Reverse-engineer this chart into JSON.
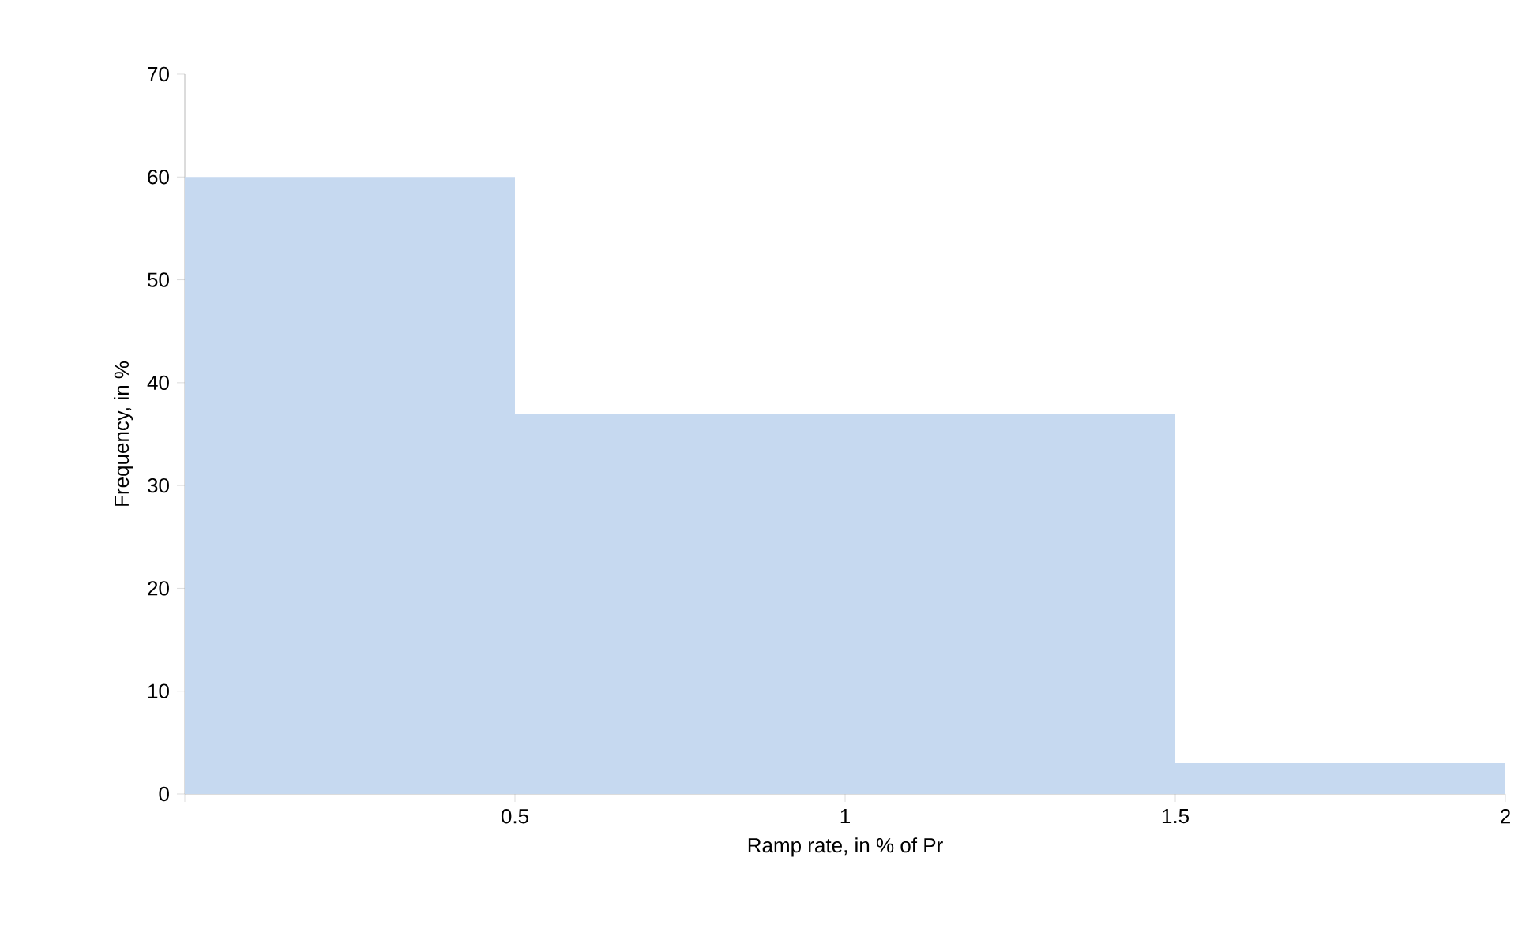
{
  "chart_data": {
    "type": "histogram",
    "xlabel": "Ramp rate, in % of Pr",
    "ylabel": "Frequency, in %",
    "bins": [
      0,
      0.5,
      1.5,
      2
    ],
    "values": [
      60,
      37,
      3
    ],
    "color": "#c6d9f0",
    "xlim": [
      0,
      2
    ],
    "ylim": [
      0,
      70
    ],
    "xticks": [
      {
        "value": 0,
        "label": null
      },
      0.5,
      1,
      1.5,
      2
    ],
    "yticks": [
      0,
      10,
      20,
      30,
      40,
      50,
      60,
      70
    ]
  }
}
